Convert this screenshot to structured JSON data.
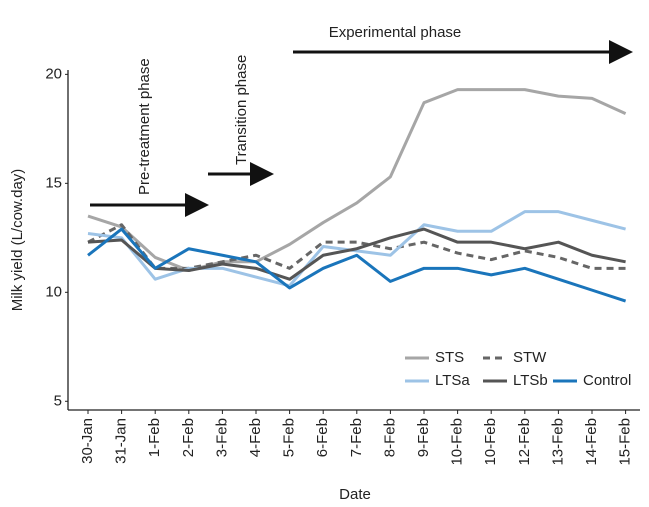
{
  "chart_data": {
    "type": "line",
    "y_label": "Milk yield (L/cow.day)",
    "x_label": "Date",
    "annotations": [
      "Pre-treatment phase",
      "Transition phase",
      "Experimental phase"
    ],
    "categories": [
      "30-Jan",
      "31-Jan",
      "1-Feb",
      "2-Feb",
      "3-Feb",
      "4-Feb",
      "5-Feb",
      "6-Feb",
      "7-Feb",
      "8-Feb",
      "9-Feb",
      "10-Feb",
      "10-Feb",
      "12-Feb",
      "13-Feb",
      "14-Feb",
      "15-Feb"
    ],
    "ylim": [
      4.6,
      20.2
    ],
    "yticks": [
      5,
      10,
      15,
      20
    ],
    "grid": false,
    "series": [
      {
        "name": "STS",
        "color": "#a6a6a6",
        "values": [
          13.5,
          13.0,
          11.6,
          11.0,
          11.4,
          11.4,
          12.2,
          13.2,
          14.1,
          15.3,
          18.7,
          19.3,
          19.3,
          19.3,
          19.0,
          18.9,
          18.2
        ]
      },
      {
        "name": "STW",
        "color": "#666666",
        "line_style": "dashed",
        "values": [
          12.3,
          13.1,
          11.1,
          11.1,
          11.4,
          11.7,
          11.1,
          12.3,
          12.3,
          12.0,
          12.3,
          11.8,
          11.5,
          11.9,
          11.6,
          11.1,
          11.1
        ]
      },
      {
        "name": "LTSa",
        "color": "#9dc3e6",
        "values": [
          12.7,
          12.5,
          10.6,
          11.1,
          11.1,
          10.7,
          10.3,
          12.1,
          11.9,
          11.7,
          13.1,
          12.8,
          12.8,
          13.7,
          13.7,
          13.3,
          12.9
        ]
      },
      {
        "name": "LTSb",
        "color": "#555555",
        "values": [
          12.3,
          12.4,
          11.1,
          11.0,
          11.3,
          11.1,
          10.6,
          11.7,
          12.0,
          12.5,
          12.9,
          12.3,
          12.3,
          12.0,
          12.3,
          11.7,
          11.4
        ]
      },
      {
        "name": "Control",
        "color": "#1a75bb",
        "values": [
          11.7,
          12.9,
          11.1,
          12.0,
          11.7,
          11.4,
          10.2,
          11.1,
          11.7,
          10.5,
          11.1,
          11.1,
          10.8,
          11.1,
          10.6,
          10.1,
          9.6
        ]
      }
    ]
  }
}
